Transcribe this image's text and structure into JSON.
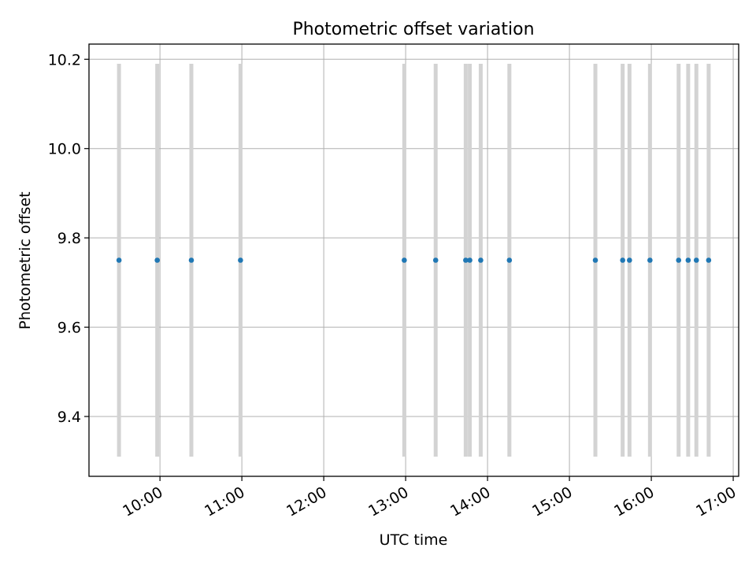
{
  "chart_data": {
    "type": "scatter",
    "title": "Photometric offset variation",
    "xlabel": "UTC time",
    "ylabel": "Photometric offset",
    "x_ticks": [
      "10:00",
      "11:00",
      "12:00",
      "13:00",
      "14:00",
      "15:00",
      "16:00",
      "17:00"
    ],
    "y_ticks": [
      "9.4",
      "9.6",
      "9.8",
      "10.0",
      "10.2"
    ],
    "xlim": [
      "09:08",
      "17:04"
    ],
    "ylim": [
      9.266,
      10.234
    ],
    "grid": true,
    "legend": "none",
    "point_color": "#1f77b4",
    "errorbar_color": "#d3d3d3",
    "series": [
      {
        "points": [
          {
            "x": "09:30",
            "y": 9.75,
            "ylow": 9.31,
            "yhigh": 10.19
          },
          {
            "x": "09:58",
            "y": 9.75,
            "ylow": 9.31,
            "yhigh": 10.19
          },
          {
            "x": "10:23",
            "y": 9.75,
            "ylow": 9.31,
            "yhigh": 10.19
          },
          {
            "x": "10:59",
            "y": 9.75,
            "ylow": 9.31,
            "yhigh": 10.19
          },
          {
            "x": "12:59",
            "y": 9.75,
            "ylow": 9.31,
            "yhigh": 10.19
          },
          {
            "x": "13:22",
            "y": 9.75,
            "ylow": 9.31,
            "yhigh": 10.19
          },
          {
            "x": "13:44",
            "y": 9.75,
            "ylow": 9.31,
            "yhigh": 10.19
          },
          {
            "x": "13:47",
            "y": 9.75,
            "ylow": 9.31,
            "yhigh": 10.19
          },
          {
            "x": "13:55",
            "y": 9.75,
            "ylow": 9.31,
            "yhigh": 10.19
          },
          {
            "x": "14:16",
            "y": 9.75,
            "ylow": 9.31,
            "yhigh": 10.19
          },
          {
            "x": "15:19",
            "y": 9.75,
            "ylow": 9.31,
            "yhigh": 10.19
          },
          {
            "x": "15:39",
            "y": 9.75,
            "ylow": 9.31,
            "yhigh": 10.19
          },
          {
            "x": "15:44",
            "y": 9.75,
            "ylow": 9.31,
            "yhigh": 10.19
          },
          {
            "x": "15:59",
            "y": 9.75,
            "ylow": 9.31,
            "yhigh": 10.19
          },
          {
            "x": "16:20",
            "y": 9.75,
            "ylow": 9.31,
            "yhigh": 10.19
          },
          {
            "x": "16:27",
            "y": 9.75,
            "ylow": 9.31,
            "yhigh": 10.19
          },
          {
            "x": "16:33",
            "y": 9.75,
            "ylow": 9.31,
            "yhigh": 10.19
          },
          {
            "x": "16:42",
            "y": 9.75,
            "ylow": 9.31,
            "yhigh": 10.19
          }
        ]
      }
    ]
  }
}
